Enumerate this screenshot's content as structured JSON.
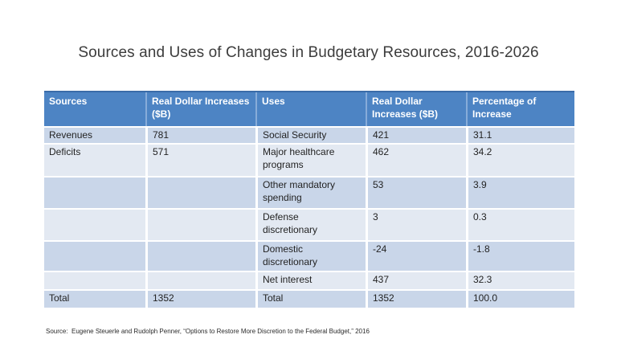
{
  "title": "Sources and Uses of Changes in Budgetary Resources, 2016-2026",
  "chart_data": {
    "type": "table",
    "title": "Sources and Uses of Changes in Budgetary Resources, 2016-2026",
    "columns": [
      "Sources",
      "Real Dollar Increases ($B)",
      "Uses",
      "Real Dollar Increases ($B)",
      "Percentage of Increase"
    ],
    "rows": [
      [
        "Revenues",
        "781",
        "Social Security",
        "421",
        "31.1"
      ],
      [
        "Deficits",
        "571",
        "Major healthcare programs",
        "462",
        "34.2"
      ],
      [
        "",
        "",
        "Other mandatory spending",
        "53",
        "3.9"
      ],
      [
        "",
        "",
        "Defense discretionary",
        "3",
        "0.3"
      ],
      [
        "",
        "",
        "Domestic discretionary",
        "-24",
        "-1.8"
      ],
      [
        "",
        "",
        "Net interest",
        "437",
        "32.3"
      ],
      [
        "Total",
        "1352",
        "Total",
        "1352",
        "100.0"
      ]
    ]
  },
  "source_note": "Source:  Eugene Steuerle and Rudolph Penner, “Options to Restore More Discretion to the Federal Budget,” 2016",
  "colors": {
    "background": "#FFFFFF",
    "header_bg": "#4D84C4",
    "header_divider": "#87ACD9",
    "header_top_border": "#3A6CA8",
    "header_text": "#FFFFFF",
    "row_band_medium": "#C9D6E9",
    "row_band_light": "#E3E9F2",
    "body_text": "#232323",
    "title_text": "#3C3C3C"
  }
}
